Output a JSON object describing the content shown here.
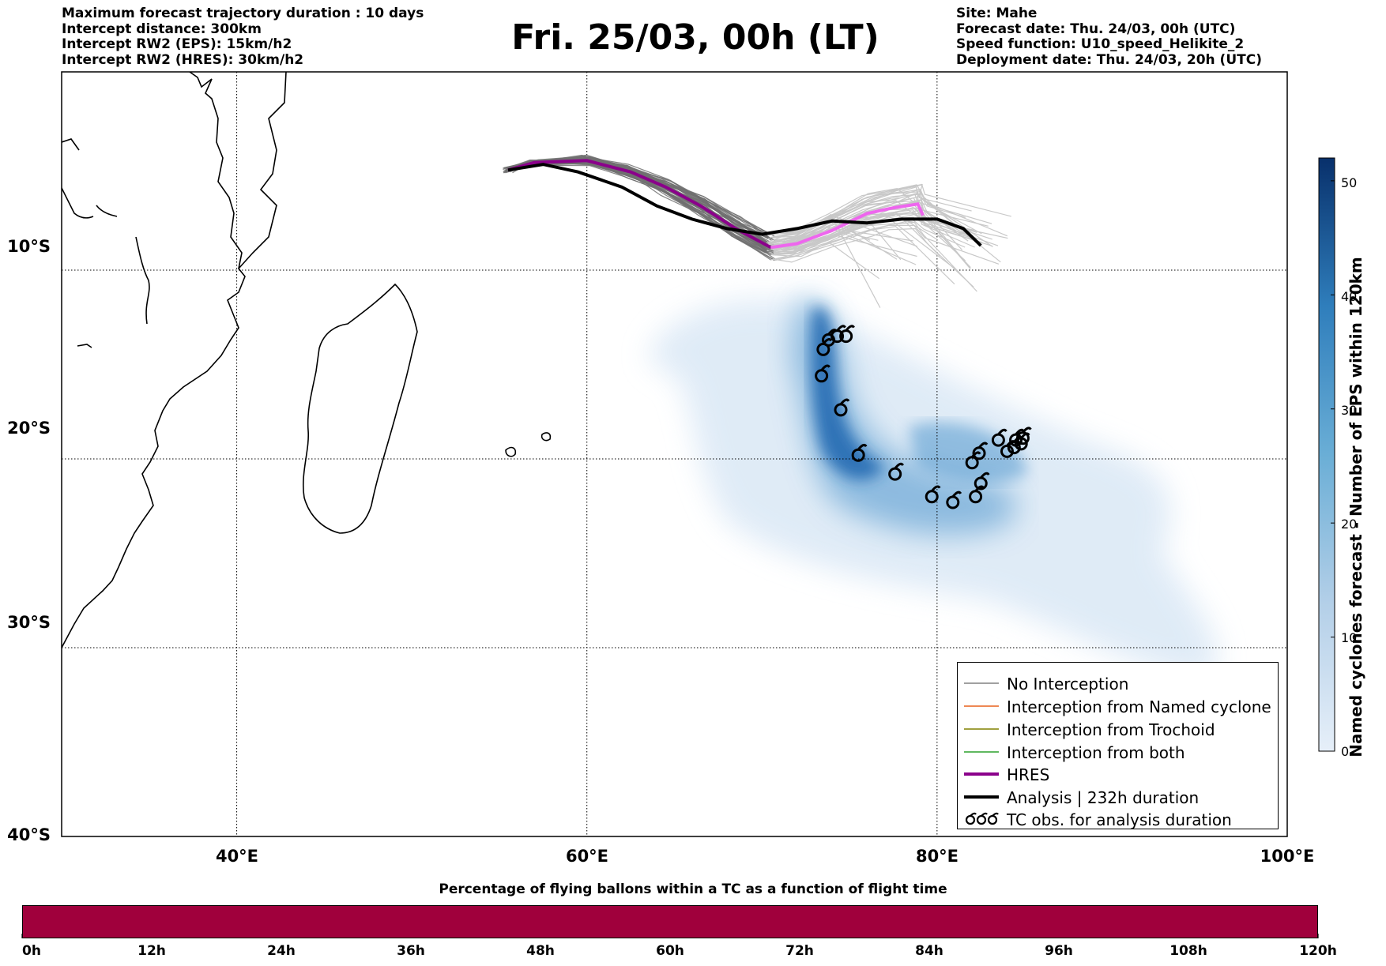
{
  "header_left": [
    "Maximum forecast trajectory duration : 10 days",
    "Intercept distance: 300km",
    "Intercept RW2 (EPS):  15km/h2",
    "Intercept RW2 (HRES): 30km/h2"
  ],
  "header_right": [
    "Site: Mahe",
    "Forecast date: Thu. 24/03, 00h (UTC)",
    "Speed function: U10_speed_Helikite_2",
    "Deployment date: Thu. 24/03, 20h (UTC)"
  ],
  "title": "Fri. 25/03, 00h (LT)",
  "map": {
    "lon_range": [
      30,
      100
    ],
    "lat_range": [
      -40,
      0.5
    ],
    "lon_ticks": [
      {
        "value": 40,
        "label": "40°E"
      },
      {
        "value": 60,
        "label": "60°E"
      },
      {
        "value": 80,
        "label": "80°E"
      },
      {
        "value": 100,
        "label": "100°E"
      }
    ],
    "lat_ticks": [
      {
        "value": -10,
        "label": "10°S"
      },
      {
        "value": -20,
        "label": "20°S"
      },
      {
        "value": -30,
        "label": "30°S"
      },
      {
        "value": -40,
        "label": "40°S"
      }
    ],
    "grid": "dotted",
    "colors": {
      "eps_near": "#707070",
      "eps_far": "#c8c8c8",
      "hres": "#8b008b",
      "hres_late": "#ee66ee",
      "analysis": "#000000",
      "density": "#2166ac"
    }
  },
  "legend": {
    "placement": "lower-right",
    "items": [
      {
        "label": "No Interception",
        "color": "#808080",
        "style": "thin"
      },
      {
        "label": "Interception from Named cyclone",
        "color": "#e8601c",
        "style": "thin"
      },
      {
        "label": "Interception from Trochoid",
        "color": "#808000",
        "style": "thin"
      },
      {
        "label": "Interception from both",
        "color": "#2ca02c",
        "style": "thin"
      },
      {
        "label": "HRES",
        "color": "#8b008b",
        "style": "thick"
      },
      {
        "label": "Analysis | 232h duration",
        "color": "#000000",
        "style": "thick"
      },
      {
        "label": "TC obs. for analysis duration",
        "color": "#000000",
        "style": "cyclone"
      }
    ]
  },
  "colorbar": {
    "label": "Named cyclones forecast - Number of EPS within 120km",
    "range": [
      0,
      52
    ],
    "ticks": [
      "0",
      "10",
      "20",
      "30",
      "40",
      "50"
    ],
    "colors": [
      "#e6eff9",
      "#08306b"
    ]
  },
  "bottom_bar": {
    "title": "Percentage of flying ballons within a TC as a function of flight time",
    "color": "#a0003c",
    "fill_percent": 100,
    "ticks": [
      "0h",
      "12h",
      "24h",
      "36h",
      "48h",
      "60h",
      "72h",
      "84h",
      "96h",
      "108h",
      "120h"
    ]
  },
  "chart_data": {
    "type": "map",
    "tracks": {
      "analysis": [
        [
          55.5,
          -4.7
        ],
        [
          57.5,
          -4.4
        ],
        [
          59.5,
          -4.8
        ],
        [
          62,
          -5.6
        ],
        [
          64,
          -6.6
        ],
        [
          66,
          -7.3
        ],
        [
          68,
          -7.8
        ],
        [
          70,
          -8.1
        ],
        [
          72,
          -7.8
        ],
        [
          74,
          -7.4
        ],
        [
          76,
          -7.5
        ],
        [
          78,
          -7.3
        ],
        [
          80,
          -7.3
        ],
        [
          81.5,
          -7.8
        ],
        [
          82.5,
          -8.7
        ]
      ],
      "hres": [
        [
          55.5,
          -4.7
        ],
        [
          57,
          -4.3
        ],
        [
          60,
          -4.2
        ],
        [
          62.5,
          -4.8
        ],
        [
          64.5,
          -5.6
        ],
        [
          66.5,
          -6.6
        ],
        [
          68.5,
          -7.8
        ],
        [
          70.5,
          -8.8
        ],
        [
          72,
          -8.6
        ],
        [
          74,
          -7.9
        ],
        [
          76,
          -7.0
        ],
        [
          77.5,
          -6.7
        ],
        [
          78.9,
          -6.5
        ],
        [
          79.2,
          -7.1
        ]
      ]
    },
    "tc_obs": [
      [
        73.8,
        -13.7
      ],
      [
        74.3,
        -13.5
      ],
      [
        73.5,
        -14.2
      ],
      [
        74.8,
        -13.5
      ],
      [
        73.4,
        -15.6
      ],
      [
        74.5,
        -17.4
      ],
      [
        75.5,
        -19.8
      ],
      [
        77.6,
        -20.8
      ],
      [
        79.7,
        -22.0
      ],
      [
        80.9,
        -22.3
      ],
      [
        82.2,
        -22.0
      ],
      [
        82.5,
        -21.3
      ],
      [
        82.0,
        -20.2
      ],
      [
        82.4,
        -19.7
      ],
      [
        83.5,
        -19.0
      ],
      [
        84.0,
        -19.6
      ],
      [
        84.4,
        -19.4
      ],
      [
        84.5,
        -19.0
      ],
      [
        84.8,
        -19.2
      ],
      [
        84.9,
        -18.9
      ]
    ]
  }
}
